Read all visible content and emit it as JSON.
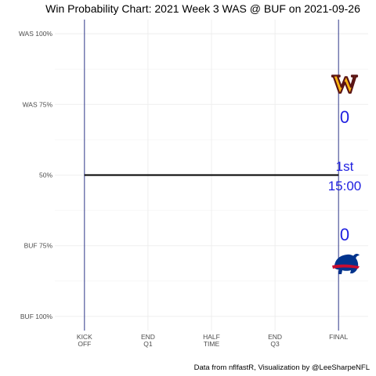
{
  "chart_data": {
    "type": "line",
    "title": "Win Probability Chart: 2021 Week 3 WAS @ BUF on 2021-09-26",
    "xlabel": "",
    "ylabel": "",
    "x_ticks": [
      {
        "value": 0,
        "line1": "KICK",
        "line2": "OFF"
      },
      {
        "value": 15,
        "line1": "END",
        "line2": "Q1"
      },
      {
        "value": 30,
        "line1": "HALF",
        "line2": "TIME"
      },
      {
        "value": 45,
        "line1": "END",
        "line2": "Q3"
      },
      {
        "value": 60,
        "line1": "FINAL",
        "line2": ""
      }
    ],
    "y_ticks": [
      {
        "value": 1.0,
        "label": "WAS 100%"
      },
      {
        "value": 0.75,
        "label": "WAS 75%"
      },
      {
        "value": 0.5,
        "label": "50%"
      },
      {
        "value": 0.25,
        "label": "BUF 75%"
      },
      {
        "value": 0.0,
        "label": "BUF 100%"
      }
    ],
    "xlim": [
      -7,
      67
    ],
    "ylim": [
      -0.05,
      1.05
    ],
    "grid": true,
    "series": [
      {
        "x": [
          0,
          60
        ],
        "y": [
          0.5,
          0.5
        ],
        "color": "#000000"
      }
    ],
    "vlines": [
      0,
      60
    ],
    "vline_color": "#1a237e",
    "annotations": {
      "away_score": "0",
      "home_score": "0",
      "quarter": "1st",
      "clock": "15:00",
      "text_color": "#1f1fe0"
    },
    "caption": "Data from nflfastR, Visualization by @LeeSharpeNFL",
    "logos": {
      "away": {
        "team": "WAS",
        "letter": "W",
        "primary": "#ffb612",
        "secondary": "#5a1414"
      },
      "home": {
        "team": "BUF",
        "primary": "#00338d",
        "secondary": "#c60c30"
      }
    }
  }
}
